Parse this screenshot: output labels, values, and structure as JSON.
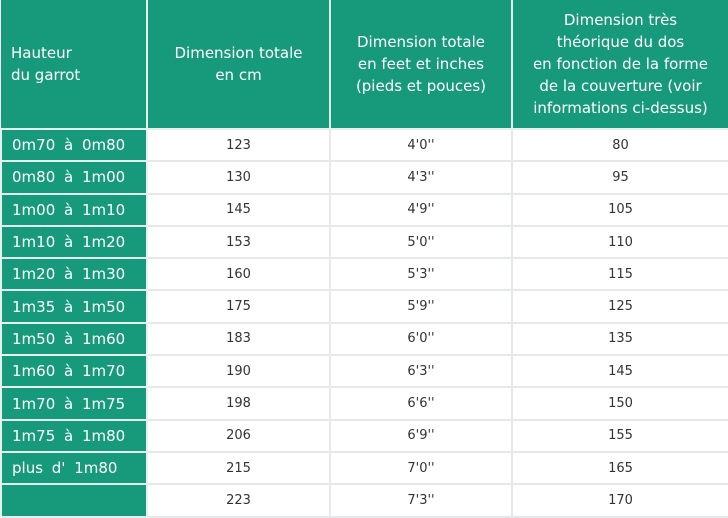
{
  "headers": [
    "Hauteur\ndu garrot",
    "Dimension totale\nen cm",
    "Dimension totale\nen feet et inches\n(pieds et pouces)",
    "Dimension très\nthéorique du dos\nen fonction de la forme\nde la couverture (voir\ninformations ci-dessus)"
  ],
  "rows": [
    [
      "0m70 à 0m80",
      "123",
      "4'0''",
      "80"
    ],
    [
      "0m80 à 1m00",
      "130",
      "4'3''",
      "95"
    ],
    [
      "1m00 à 1m10",
      "145",
      "4'9''",
      "105"
    ],
    [
      "1m10 à 1m20",
      "153",
      "5'0''",
      "110"
    ],
    [
      "1m20 à 1m30",
      "160",
      "5'3''",
      "115"
    ],
    [
      "1m35 à 1m50",
      "175",
      "5'9''",
      "125"
    ],
    [
      "1m50 à 1m60",
      "183",
      "6'0''",
      "135"
    ],
    [
      "1m60 à 1m70",
      "190",
      "6'3''",
      "145"
    ],
    [
      "1m70 à 1m75",
      "198",
      "6'6''",
      "150"
    ],
    [
      "1m75 à 1m80",
      "206",
      "6'9''",
      "155"
    ],
    [
      "plus d' 1m80",
      "215",
      "7'0''",
      "165"
    ],
    [
      "",
      "223",
      "7'3''",
      "170"
    ]
  ],
  "colors": {
    "header_bg": "#179a7c",
    "header_text": "#ffffff",
    "border": "#e6e8ea"
  }
}
